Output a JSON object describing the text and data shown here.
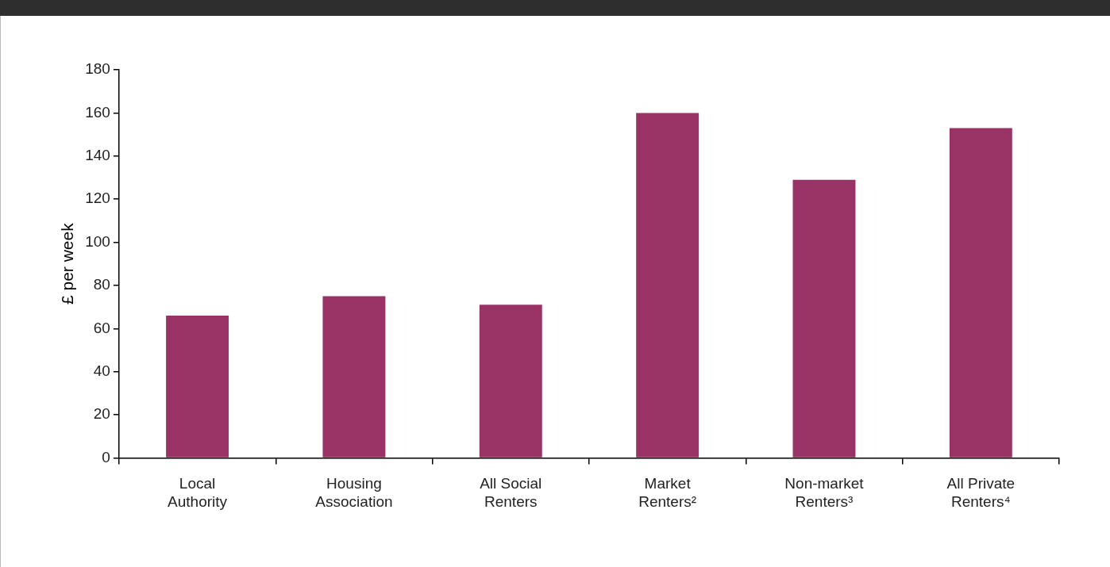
{
  "chart_data": {
    "type": "bar",
    "ylabel": "£ per week",
    "categories": [
      "Local Authority",
      "Housing Association",
      "All Social Renters",
      "Market Renters²",
      "Non-market Renters³",
      "All Private Renters⁴"
    ],
    "values": [
      66,
      75,
      71,
      160,
      129,
      153
    ],
    "color": "#993366",
    "ylim": [
      0,
      180
    ],
    "yticks": [
      0,
      20,
      40,
      60,
      80,
      100,
      120,
      140,
      160,
      180
    ],
    "grid": false,
    "legend": false
  }
}
